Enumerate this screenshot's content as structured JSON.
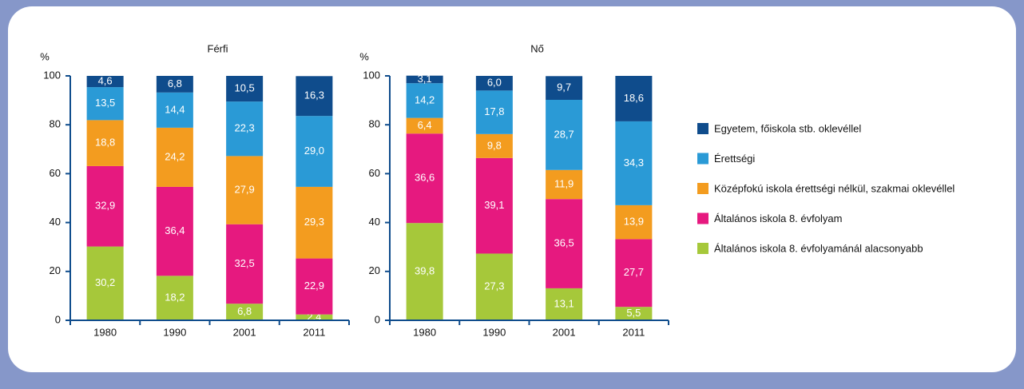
{
  "chart_data": [
    {
      "type": "stacked_bar",
      "title": "Férfi",
      "ylabel": "%",
      "categories": [
        "1980",
        "1990",
        "2001",
        "2011"
      ],
      "ylim": [
        0,
        100
      ],
      "yticks": [
        0,
        20,
        40,
        60,
        80,
        100
      ],
      "series": [
        {
          "name": "Általános iskola 8. évfolyamánál alacsonyabb",
          "color": "#a6c83a",
          "values": [
            30.2,
            18.2,
            6.8,
            2.4
          ],
          "value_labels": [
            "30,2",
            "18,2",
            "6,8",
            "2,4"
          ]
        },
        {
          "name": "Általános iskola 8. évfolyam",
          "color": "#e6197f",
          "values": [
            32.9,
            36.4,
            32.5,
            22.9
          ],
          "value_labels": [
            "32,9",
            "36,4",
            "32,5",
            "22,9"
          ]
        },
        {
          "name": "Középfokú iskola érettségi nélkül, szakmai oklevéllel",
          "color": "#f39c1f",
          "values": [
            18.8,
            24.2,
            27.9,
            29.3
          ],
          "value_labels": [
            "18,8",
            "24,2",
            "27,9",
            "29,3"
          ]
        },
        {
          "name": "Érettségi",
          "color": "#2a9ad6",
          "values": [
            13.5,
            14.4,
            22.3,
            29.0
          ],
          "value_labels": [
            "13,5",
            "14,4",
            "22,3",
            "29,0"
          ]
        },
        {
          "name": "Egyetem, főiskola stb. oklevéllel",
          "color": "#0f4c8c",
          "values": [
            4.6,
            6.8,
            10.5,
            16.3
          ],
          "value_labels": [
            "4,6",
            "6,8",
            "10,5",
            "16,3"
          ]
        }
      ]
    },
    {
      "type": "stacked_bar",
      "title": "Nő",
      "ylabel": "%",
      "categories": [
        "1980",
        "1990",
        "2001",
        "2011"
      ],
      "ylim": [
        0,
        100
      ],
      "yticks": [
        0,
        20,
        40,
        60,
        80,
        100
      ],
      "series": [
        {
          "name": "Általános iskola 8. évfolyamánál alacsonyabb",
          "color": "#a6c83a",
          "values": [
            39.8,
            27.3,
            13.1,
            5.5
          ],
          "value_labels": [
            "39,8",
            "27,3",
            "13,1",
            "5,5"
          ]
        },
        {
          "name": "Általános iskola 8. évfolyam",
          "color": "#e6197f",
          "values": [
            36.6,
            39.1,
            36.5,
            27.7
          ],
          "value_labels": [
            "36,6",
            "39,1",
            "36,5",
            "27,7"
          ]
        },
        {
          "name": "Középfokú iskola érettségi nélkül, szakmai oklevéllel",
          "color": "#f39c1f",
          "values": [
            6.4,
            9.8,
            11.9,
            13.9
          ],
          "value_labels": [
            "6,4",
            "9,8",
            "11,9",
            "13,9"
          ]
        },
        {
          "name": "Érettségi",
          "color": "#2a9ad6",
          "values": [
            14.2,
            17.8,
            28.7,
            34.3
          ],
          "value_labels": [
            "14,2",
            "17,8",
            "28,7",
            "34,3"
          ]
        },
        {
          "name": "Egyetem, főiskola stb. oklevéllel",
          "color": "#0f4c8c",
          "values": [
            3.1,
            6.0,
            9.7,
            18.6
          ],
          "value_labels": [
            "3,1",
            "6,0",
            "9,7",
            "18,6"
          ]
        }
      ]
    }
  ]
}
